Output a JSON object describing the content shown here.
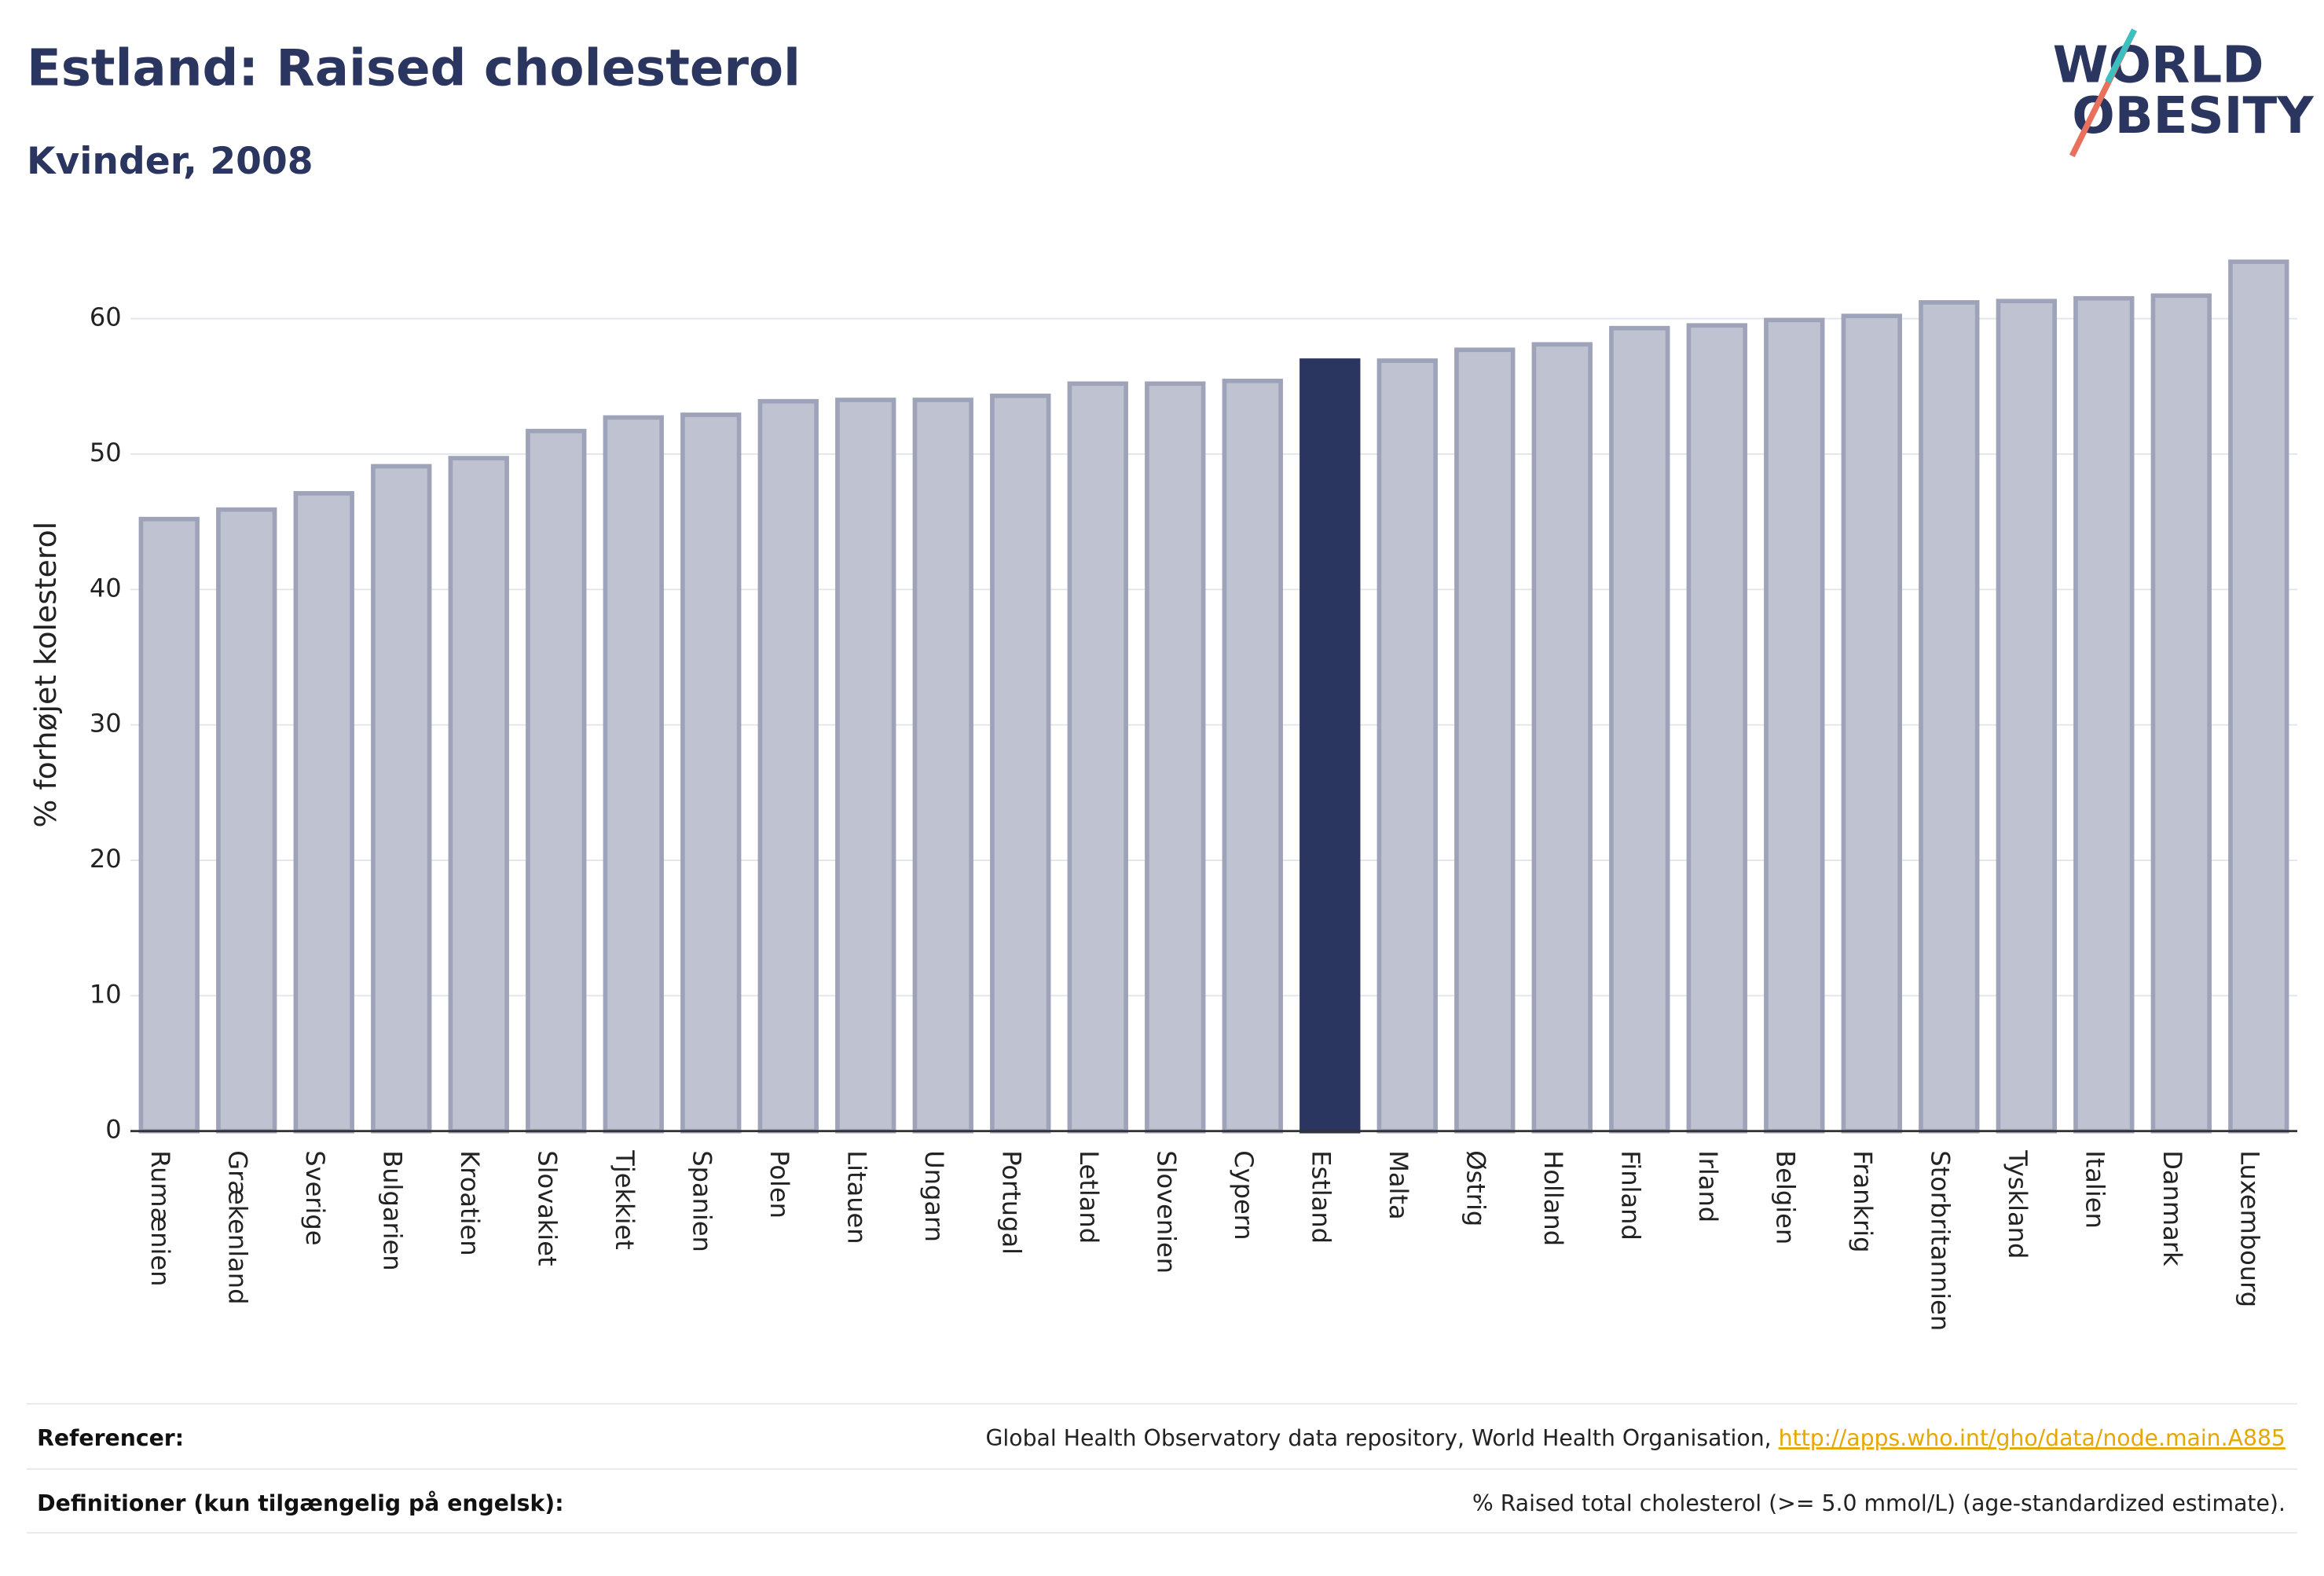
{
  "chart_data": {
    "type": "bar",
    "title": "Estland: Raised cholesterol",
    "subtitle": "Kvinder, 2008",
    "y_label": "% forhøjet kolesterol",
    "categories": [
      "Rumænien",
      "Grækenland",
      "Sverige",
      "Bulgarien",
      "Kroatien",
      "Slovakiet",
      "Tjekkiet",
      "Spanien",
      "Polen",
      "Litauen",
      "Ungarn",
      "Portugal",
      "Letland",
      "Slovenien",
      "Cypern",
      "Estland",
      "Malta",
      "Østrig",
      "Holland",
      "Finland",
      "Irland",
      "Belgien",
      "Frankrig",
      "Storbritannien",
      "Tyskland",
      "Italien",
      "Danmark",
      "Luxembourg"
    ],
    "values": [
      45.2,
      45.9,
      47.1,
      49.1,
      49.7,
      51.7,
      52.7,
      52.9,
      53.9,
      54.0,
      54.0,
      54.3,
      55.2,
      55.2,
      55.4,
      56.9,
      56.9,
      57.7,
      58.1,
      59.3,
      59.5,
      59.9,
      60.2,
      61.2,
      61.3,
      61.5,
      61.7,
      64.2
    ],
    "colors": [
      "#bfc2d0",
      "#bfc2d0",
      "#bfc2d0",
      "#bfc2d0",
      "#bfc2d0",
      "#bfc2d0",
      "#bfc2d0",
      "#bfc2d0",
      "#bfc2d0",
      "#bfc2d0",
      "#bfc2d0",
      "#bfc2d0",
      "#bfc2d0",
      "#bfc2d0",
      "#bfc2d0",
      "#2a3560",
      "#bfc2d0",
      "#bfc2d0",
      "#bfc2d0",
      "#bfc2d0",
      "#bfc2d0",
      "#bfc2d0",
      "#bfc2d0",
      "#bfc2d0",
      "#bfc2d0",
      "#bfc2d0",
      "#bfc2d0",
      "#bfc2d0"
    ],
    "ylim": [
      0,
      66
    ],
    "yticks": [
      0,
      10,
      20,
      30,
      40,
      50,
      60
    ],
    "grid": true
  },
  "logo": {
    "line1": "WORLD",
    "line2": "OBESITY"
  },
  "footer": {
    "references_label": "Referencer:",
    "references_text": "Global Health Observatory data repository, World Health Organisation, ",
    "references_link": "http://apps.who.int/gho/data/node.main.A885",
    "definitions_label": "Definitioner (kun tilgængelig på engelsk):",
    "definitions_text": "% Raised total cholesterol (>= 5.0 mmol/L) (age-standardized estimate)."
  }
}
